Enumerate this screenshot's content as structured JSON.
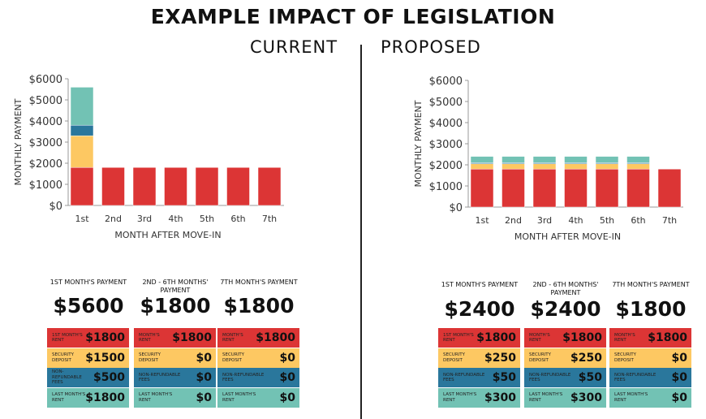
{
  "title": "EXAMPLE IMPACT OF LEGISLATION",
  "colors": {
    "rent": "#dc3535",
    "deposit": "#fdc862",
    "fees": "#2a779c",
    "last": "#72c2b4"
  },
  "chart_data": [
    {
      "type": "bar",
      "stacked": true,
      "title": "CURRENT",
      "xlabel": "MONTH AFTER MOVE-IN",
      "ylabel": "MONTHLY PAYMENT",
      "ylim": [
        0,
        6000
      ],
      "yticks": [
        "$0",
        "$1000",
        "$2000",
        "$3000",
        "$4000",
        "$5000",
        "$6000"
      ],
      "categories": [
        "1st",
        "2nd",
        "3rd",
        "4th",
        "5th",
        "6th",
        "7th"
      ],
      "series": [
        {
          "name": "Month's rent",
          "values": [
            1800,
            1800,
            1800,
            1800,
            1800,
            1800,
            1800
          ]
        },
        {
          "name": "Security deposit",
          "values": [
            1500,
            0,
            0,
            0,
            0,
            0,
            0
          ]
        },
        {
          "name": "Non-refundable fees",
          "values": [
            500,
            0,
            0,
            0,
            0,
            0,
            0
          ]
        },
        {
          "name": "Last month's rent",
          "values": [
            1800,
            0,
            0,
            0,
            0,
            0,
            0
          ]
        }
      ]
    },
    {
      "type": "bar",
      "stacked": true,
      "title": "PROPOSED",
      "xlabel": "MONTH AFTER MOVE-IN",
      "ylabel": "MONTHLY PAYMENT",
      "ylim": [
        0,
        6000
      ],
      "yticks": [
        "$0",
        "$1000",
        "$2000",
        "$3000",
        "$4000",
        "$5000",
        "$6000"
      ],
      "categories": [
        "1st",
        "2nd",
        "3rd",
        "4th",
        "5th",
        "6th",
        "7th"
      ],
      "series": [
        {
          "name": "Month's rent",
          "values": [
            1800,
            1800,
            1800,
            1800,
            1800,
            1800,
            1800
          ]
        },
        {
          "name": "Security deposit",
          "values": [
            250,
            250,
            250,
            250,
            250,
            250,
            0
          ]
        },
        {
          "name": "Non-refundable fees",
          "values": [
            50,
            50,
            50,
            50,
            50,
            50,
            0
          ]
        },
        {
          "name": "Last month's rent",
          "values": [
            300,
            300,
            300,
            300,
            300,
            300,
            0
          ]
        }
      ]
    }
  ],
  "summaries": [
    {
      "cols": [
        {
          "header": "1ST MONTH'S PAYMENT",
          "total": "$5600",
          "rows": [
            {
              "label": "1ST MONTH'S RENT",
              "value": "$1800"
            },
            {
              "label": "SECURITY DEPOSIT",
              "value": "$1500"
            },
            {
              "label": "NON-REFUNDABLE FEES",
              "value": "$500"
            },
            {
              "label": "LAST MONTH'S RENT",
              "value": "$1800"
            }
          ]
        },
        {
          "header": "2ND - 6TH MONTHS' PAYMENT",
          "total": "$1800",
          "rows": [
            {
              "label": "MONTH'S RENT",
              "value": "$1800"
            },
            {
              "label": "SECURITY DEPOSIT",
              "value": "$0"
            },
            {
              "label": "NON-REFUNDABLE FEES",
              "value": "$0"
            },
            {
              "label": "LAST MONTH'S RENT",
              "value": "$0"
            }
          ]
        },
        {
          "header": "7TH MONTH'S PAYMENT",
          "total": "$1800",
          "rows": [
            {
              "label": "MONTH'S RENT",
              "value": "$1800"
            },
            {
              "label": "SECURITY DEPOSIT",
              "value": "$0"
            },
            {
              "label": "NON-REFUNDABLE FEES",
              "value": "$0"
            },
            {
              "label": "LAST MONTH'S RENT",
              "value": "$0"
            }
          ]
        }
      ]
    },
    {
      "cols": [
        {
          "header": "1ST MONTH'S PAYMENT",
          "total": "$2400",
          "rows": [
            {
              "label": "1ST MONTH'S RENT",
              "value": "$1800"
            },
            {
              "label": "SECURITY DEPOSIT",
              "value": "$250"
            },
            {
              "label": "NON-REFUNDABLE FEES",
              "value": "$50"
            },
            {
              "label": "LAST MONTH'S RENT",
              "value": "$300"
            }
          ]
        },
        {
          "header": "2ND - 6TH MONTHS' PAYMENT",
          "total": "$2400",
          "rows": [
            {
              "label": "MONTH'S RENT",
              "value": "$1800"
            },
            {
              "label": "SECURITY DEPOSIT",
              "value": "$250"
            },
            {
              "label": "NON-REFUNDABLE FEES",
              "value": "$50"
            },
            {
              "label": "LAST MONTH'S RENT",
              "value": "$300"
            }
          ]
        },
        {
          "header": "7TH MONTH'S PAYMENT",
          "total": "$1800",
          "rows": [
            {
              "label": "MONTH'S RENT",
              "value": "$1800"
            },
            {
              "label": "SECURITY DEPOSIT",
              "value": "$0"
            },
            {
              "label": "NON-REFUNDABLE FEES",
              "value": "$0"
            },
            {
              "label": "LAST MONTH'S RENT",
              "value": "$0"
            }
          ]
        }
      ]
    }
  ]
}
